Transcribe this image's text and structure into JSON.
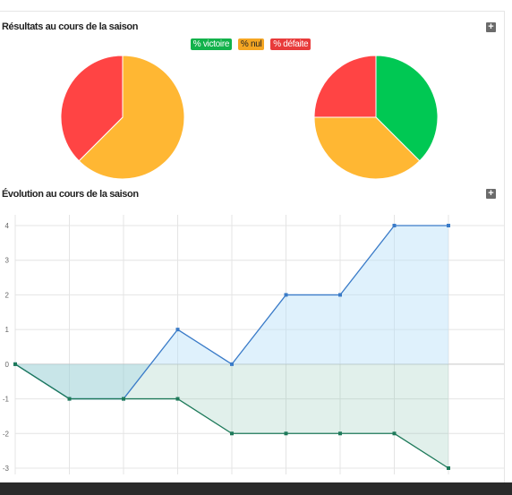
{
  "sections": {
    "results_title": "Résultats au cours de la saison",
    "evolution_title": "Évolution au cours de la saison",
    "expand_label": "+"
  },
  "legend": {
    "victoire": "% victoire",
    "nul": "% nul",
    "defaite": "% défaite"
  },
  "colors": {
    "victoire": "#00c853",
    "nul": "#ffb733",
    "defaite": "#ff4444",
    "series_a": "#3a7bc8",
    "series_b": "#1e7a5a"
  },
  "chart_data": [
    {
      "type": "pie",
      "labels": [
        "% victoire",
        "% nul",
        "% défaite"
      ],
      "values": [
        0,
        62.5,
        37.5
      ]
    },
    {
      "type": "pie",
      "labels": [
        "% victoire",
        "% nul",
        "% défaite"
      ],
      "values": [
        37.5,
        37.5,
        25
      ]
    },
    {
      "type": "area",
      "x": [
        0,
        1,
        2,
        3,
        4,
        5,
        6,
        7,
        8
      ],
      "ylim": [
        -3,
        4
      ],
      "yticks": [
        "4",
        "3",
        "2",
        "1",
        "0",
        "-1",
        "-2",
        "-3"
      ],
      "grid": true,
      "series": [
        {
          "values": [
            0,
            -1,
            -1,
            1,
            0,
            2,
            2,
            4,
            4
          ]
        },
        {
          "values": [
            0,
            -1,
            -1,
            -1,
            -2,
            -2,
            -2,
            -2,
            -3
          ]
        }
      ]
    }
  ]
}
